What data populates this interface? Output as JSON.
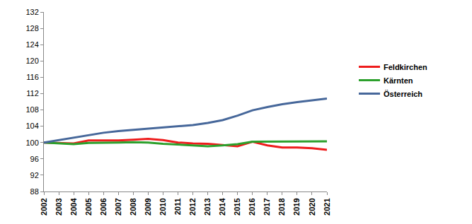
{
  "chart_data": {
    "type": "line",
    "x": [
      2002,
      2003,
      2004,
      2005,
      2006,
      2007,
      2008,
      2009,
      2010,
      2011,
      2012,
      2013,
      2014,
      2015,
      2016,
      2017,
      2018,
      2019,
      2020,
      2021
    ],
    "series": [
      {
        "name": "Feldkirchen",
        "color": "#ee1c1c",
        "values": [
          100,
          99.9,
          99.8,
          100.5,
          100.5,
          100.5,
          100.7,
          100.9,
          100.6,
          100.0,
          99.8,
          99.7,
          99.4,
          99.1,
          100.2,
          99.3,
          98.8,
          98.8,
          98.6,
          98.2
        ]
      },
      {
        "name": "Kärnten",
        "color": "#2ca02c",
        "values": [
          100,
          99.8,
          99.6,
          99.9,
          99.9,
          100.0,
          100.1,
          100.0,
          99.7,
          99.5,
          99.3,
          99.1,
          99.3,
          99.6,
          100.2,
          100.2,
          100.2,
          100.2,
          100.3,
          100.3
        ]
      },
      {
        "name": "Österreich",
        "color": "#46679a",
        "values": [
          100,
          100.6,
          101.1,
          101.8,
          102.4,
          102.8,
          103.1,
          103.4,
          103.6,
          103.9,
          104.3,
          104.8,
          105.5,
          106.6,
          107.9,
          108.7,
          109.4,
          109.9,
          110.4,
          110.8
        ]
      }
    ],
    "xlim": [
      2002,
      2021
    ],
    "xticks": [
      2002,
      2003,
      2004,
      2005,
      2006,
      2007,
      2008,
      2009,
      2010,
      2011,
      2012,
      2013,
      2014,
      2015,
      2016,
      2017,
      2018,
      2019,
      2020,
      2021
    ],
    "ylim": [
      88,
      132
    ],
    "yticks": [
      88,
      92,
      96,
      100,
      104,
      108,
      112,
      116,
      120,
      124,
      128,
      132
    ],
    "grid": false,
    "legend": "right"
  }
}
